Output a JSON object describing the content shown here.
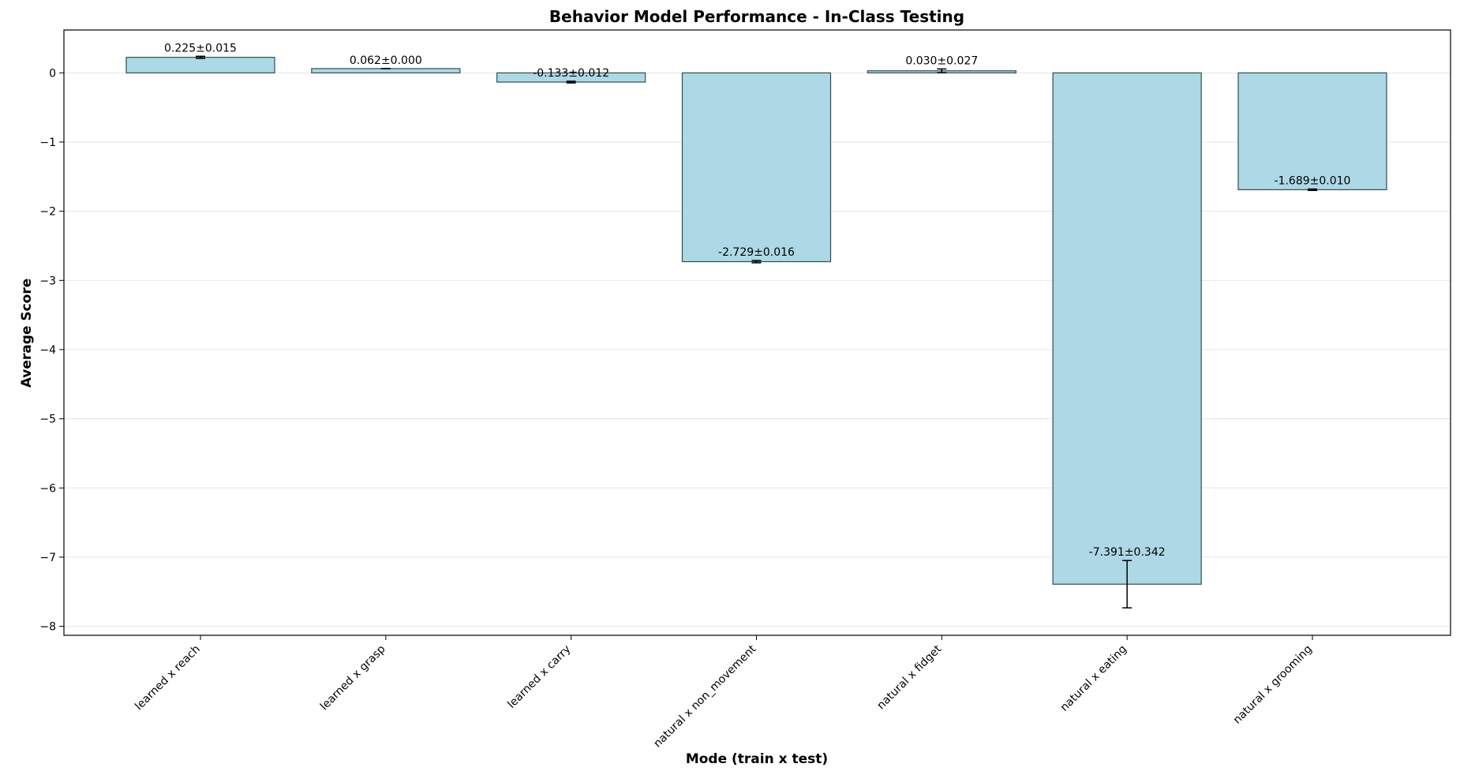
{
  "chart_data": {
    "type": "bar",
    "title": "Behavior Model Performance - In-Class Testing",
    "xlabel": "Mode (train x test)",
    "ylabel": "Average Score",
    "categories": [
      "learned x reach",
      "learned x grasp",
      "learned x carry",
      "natural x non_movement",
      "natural x fidget",
      "natural x eating",
      "natural x grooming"
    ],
    "values": [
      0.225,
      0.062,
      -0.133,
      -2.729,
      0.03,
      -7.391,
      -1.689
    ],
    "errors": [
      0.015,
      0.0,
      0.012,
      0.016,
      0.027,
      0.342,
      0.01
    ],
    "data_labels": [
      "0.225±0.015",
      "0.062±0.000",
      "-0.133±0.012",
      "-2.729±0.016",
      "0.030±0.027",
      "-7.391±0.342",
      "-1.689±0.010"
    ],
    "ylim": [
      -8.13,
      0.62
    ],
    "yticks": [
      0,
      -1,
      -2,
      -3,
      -4,
      -5,
      -6,
      -7,
      -8
    ],
    "ytick_labels": [
      "0",
      "−1",
      "−2",
      "−3",
      "−4",
      "−5",
      "−6",
      "−7",
      "−8"
    ],
    "grid": "y",
    "legend": "none",
    "colors": {
      "bar_fill": "#add8e6",
      "bar_edge": "#2f4f4f",
      "grid": "#e6e6e6",
      "axis": "#000000",
      "errorbar": "#000000"
    }
  }
}
